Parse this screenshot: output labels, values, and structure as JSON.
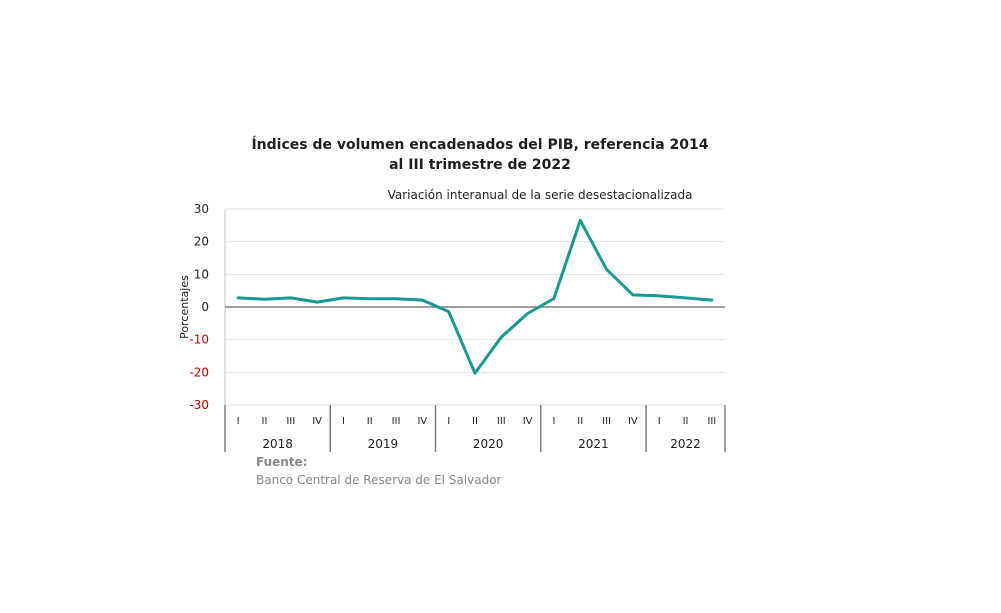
{
  "title_line1": "Índices de volumen encadenados del PIB, referencia 2014",
  "title_line2": "al III trimestre de 2022",
  "subtitle": "Variación interanual de la serie desestacionalizada",
  "source": {
    "label": "Fuente:",
    "text": "Banco Central de Reserva de El Salvador"
  },
  "colors": {
    "line": "#1a9990",
    "negative_tick": "#c00000",
    "positive_tick": "#222222",
    "zero_line": "#7f7f7f",
    "grid": "#e3e3e3"
  },
  "chart_data": {
    "type": "line",
    "title": "Índices de volumen encadenados del PIB, referencia 2014 al III trimestre de 2022",
    "subtitle": "Variación interanual de la serie desestacionalizada",
    "ylabel": "Porcentajes",
    "ylim": [
      -30,
      30
    ],
    "yticks": [
      "30",
      "20",
      "10",
      "0",
      "-10",
      "-20",
      "-30"
    ],
    "grid": true,
    "quarters": [
      "I",
      "II",
      "III",
      "IV",
      "I",
      "II",
      "III",
      "IV",
      "I",
      "II",
      "III",
      "IV",
      "I",
      "II",
      "III",
      "IV",
      "I",
      "II",
      "III"
    ],
    "years": [
      {
        "label": "2018",
        "quarters": 4
      },
      {
        "label": "2019",
        "quarters": 4
      },
      {
        "label": "2020",
        "quarters": 4
      },
      {
        "label": "2021",
        "quarters": 4
      },
      {
        "label": "2022",
        "quarters": 3
      }
    ],
    "series": [
      {
        "values": [
          2.8,
          2.4,
          2.8,
          1.5,
          2.8,
          2.5,
          2.5,
          2.1,
          -1.4,
          -20.3,
          -9.2,
          -2.0,
          2.6,
          26.5,
          11.5,
          3.7,
          3.4,
          2.8,
          2.1
        ]
      }
    ]
  }
}
